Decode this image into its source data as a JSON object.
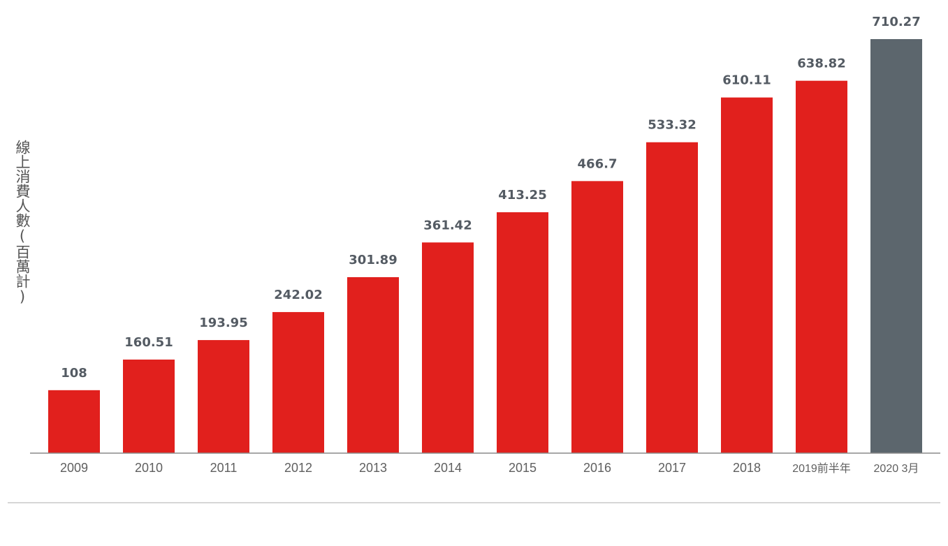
{
  "chart_data": {
    "type": "bar",
    "categories": [
      "2009",
      "2010",
      "2011",
      "2012",
      "2013",
      "2014",
      "2015",
      "2016",
      "2017",
      "2018",
      "2019前半年",
      "2020 3月"
    ],
    "values": [
      108,
      160.51,
      193.95,
      242.02,
      301.89,
      361.42,
      413.25,
      466.7,
      533.32,
      610.11,
      638.82,
      710.27
    ],
    "value_labels": [
      "108",
      "160.51",
      "193.95",
      "242.02",
      "301.89",
      "361.42",
      "413.25",
      "466.7",
      "533.32",
      "610.11",
      "638.82",
      "710.27"
    ],
    "title": "",
    "xlabel": "",
    "ylabel": "線上消費人數(百萬計)",
    "ylim": [
      0,
      710.27
    ],
    "grid": false,
    "legend": "none",
    "colors": {
      "bar": "#e1201d",
      "highlight_bar": "#5c666d",
      "axis": "#8a8a8a",
      "value_label": "#545b63",
      "tick_label": "#5f5f5f"
    },
    "highlight_index": 11
  }
}
